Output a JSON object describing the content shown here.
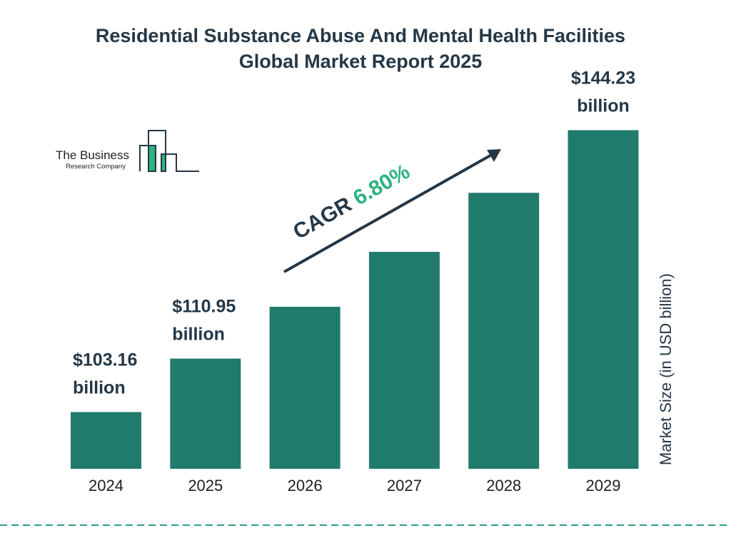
{
  "chart_data": {
    "type": "bar",
    "title": "Residential Substance Abuse And Mental Health Facilities Global Market Report 2025",
    "title_lines": [
      "Residential Substance Abuse And Mental Health Facilities",
      "Global Market Report 2025"
    ],
    "categories": [
      "2024",
      "2025",
      "2026",
      "2027",
      "2028",
      "2029"
    ],
    "values": [
      103.16,
      110.95,
      118.5,
      126.5,
      135.1,
      144.23
    ],
    "data_labels": [
      {
        "index": 0,
        "line1": "$103.16",
        "line2": "billion"
      },
      {
        "index": 1,
        "line1": "$110.95",
        "line2": "billion"
      },
      {
        "index": 5,
        "line1": "$144.23",
        "line2": "billion"
      }
    ],
    "xlabel": "",
    "ylabel": "Market Size (in USD billion)",
    "ylim": [
      95,
      145
    ],
    "grid": false,
    "bar_color": "#217b6c",
    "annotation": {
      "prefix": "CAGR ",
      "value": "6.80%",
      "prefix_color": "#253746",
      "value_color": "#2db37f"
    }
  },
  "logo": {
    "line1": "The Business",
    "line2": "Research Company",
    "accent": "#2db37f",
    "stroke": "#253746"
  },
  "footer_dash_color": "#2a9d8f"
}
